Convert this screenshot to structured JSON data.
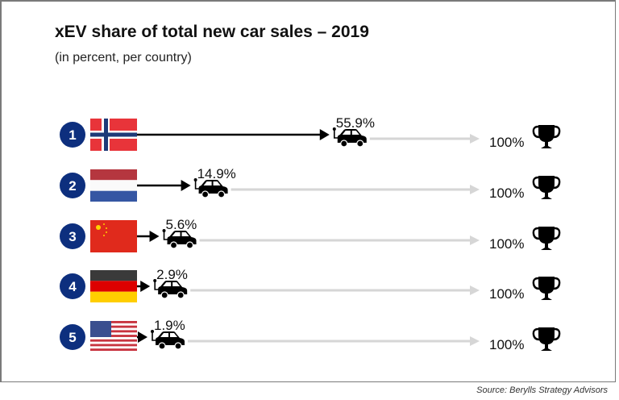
{
  "chart_data": {
    "type": "bar",
    "title": "xEV share of total new car sales – 2019",
    "subtitle": "(in percent, per country)",
    "unit": "%",
    "max_label": "100%",
    "xlim": [
      0,
      100
    ],
    "categories": [
      "Norway",
      "Netherlands",
      "China",
      "Germany",
      "USA"
    ],
    "ranks": [
      "1",
      "2",
      "3",
      "4",
      "5"
    ],
    "values": [
      55.9,
      14.9,
      5.6,
      2.9,
      1.9
    ],
    "value_labels": [
      "55.9%",
      "14.9%",
      "5.6%",
      "2.9%",
      "1.9%"
    ],
    "source": "Source: Berylls Strategy Advisors"
  },
  "colors": {
    "rank_circle": "#0d2f7e",
    "arrow": "#000000",
    "track": "#d6d6d6"
  },
  "icons": {
    "marker": "electric-car-icon",
    "goal": "trophy-icon"
  }
}
